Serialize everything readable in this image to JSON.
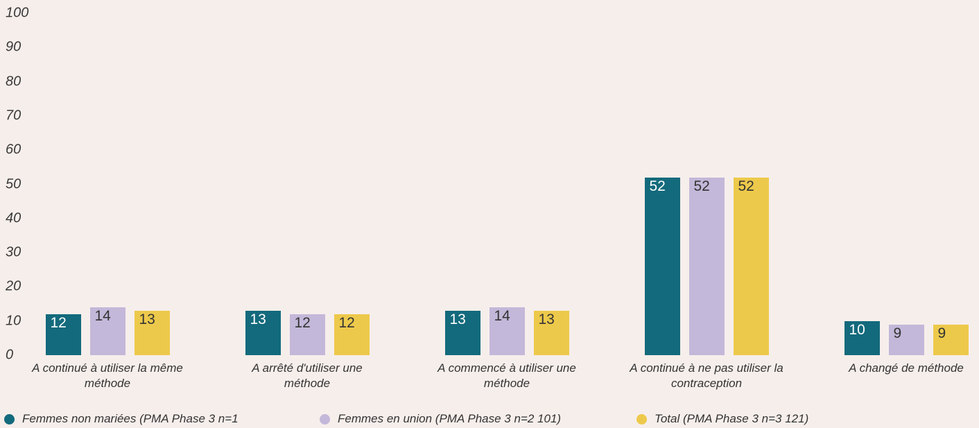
{
  "chart_data": {
    "type": "bar",
    "categories": [
      "A continué à utiliser la même méthode",
      "A arrêté d'utiliser une méthode",
      "A commencé à utiliser une méthode",
      "A continué à ne pas utiliser la contraception",
      "A changé de méthode"
    ],
    "series": [
      {
        "name": "Femmes non mariées (PMA Phase 3 n=1",
        "color": "#136a7c",
        "values": [
          12,
          13,
          13,
          52,
          10
        ]
      },
      {
        "name": "Femmes en union (PMA Phase 3 n=2 101)",
        "color": "#c3b8d9",
        "values": [
          14,
          12,
          14,
          52,
          9
        ]
      },
      {
        "name": "Total (PMA Phase 3 n=3 121)",
        "color": "#edc94b",
        "values": [
          13,
          12,
          13,
          52,
          9
        ]
      }
    ],
    "ylim": [
      0,
      100
    ],
    "yticks": [
      0,
      10,
      20,
      30,
      40,
      50,
      60,
      70,
      80,
      90,
      100
    ],
    "grid": false
  }
}
